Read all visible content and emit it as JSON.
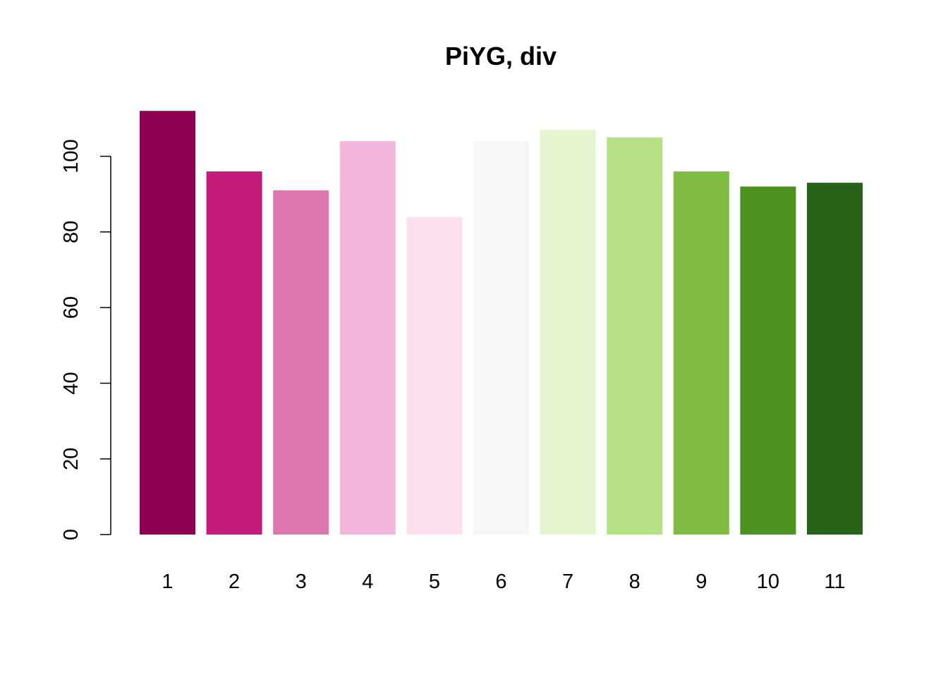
{
  "chart_data": {
    "type": "bar",
    "title": "PiYG, div",
    "xlabel": "",
    "ylabel": "",
    "categories": [
      "1",
      "2",
      "3",
      "4",
      "5",
      "6",
      "7",
      "8",
      "9",
      "10",
      "11"
    ],
    "values": [
      112,
      96,
      91,
      104,
      84,
      104,
      107,
      105,
      96,
      92,
      93
    ],
    "colors": [
      "#8E0152",
      "#C51B7D",
      "#DE77AE",
      "#F1B6DA",
      "#FDE0EF",
      "#F7F7F7",
      "#E6F5D0",
      "#B8E186",
      "#7FBC41",
      "#4D9221",
      "#276419"
    ],
    "ylim": [
      0,
      112
    ],
    "yticks": [
      0,
      20,
      40,
      60,
      80,
      100
    ],
    "grid": false,
    "legend": "none"
  }
}
